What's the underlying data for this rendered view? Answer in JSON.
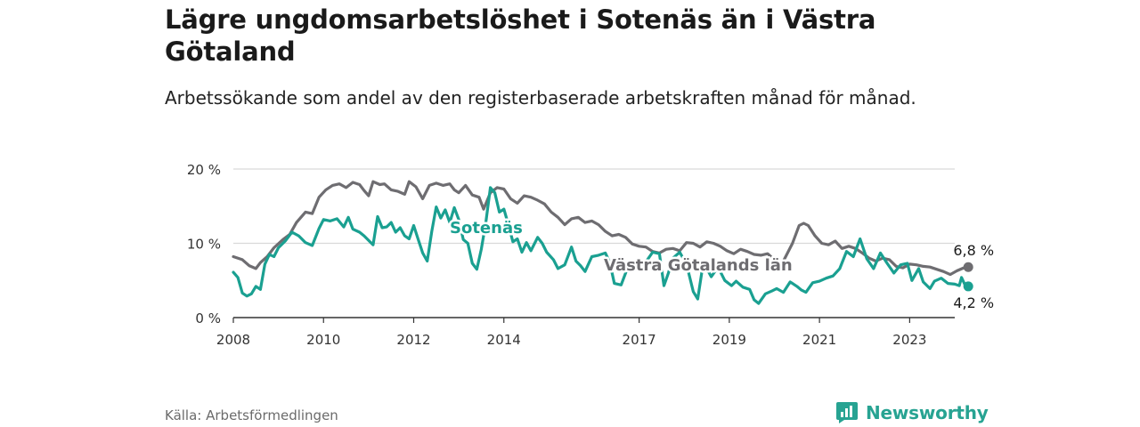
{
  "title": "Lägre ungdomsarbetslöshet i Sotenäs än i Västra Götaland",
  "subtitle": "Arbetssökande som andel av den registerbaserade arbetskraften månad för månad.",
  "source": "Källa: Arbetsförmedlingen",
  "brand": "Newsworthy",
  "colors": {
    "sotenas": "#1aa091",
    "vg": "#6e6d71",
    "grid": "#d9d9d9",
    "axis": "#333333",
    "brand": "#27a392"
  },
  "chart_data": {
    "type": "line",
    "title": "Lägre ungdomsarbetslöshet i Sotenäs än i Västra Götaland",
    "xlabel": "",
    "ylabel": "",
    "xlim": [
      2008,
      2024
    ],
    "ylim": [
      0,
      20
    ],
    "yticks": [
      0,
      10,
      20
    ],
    "ytick_labels": [
      "0 %",
      "10 %",
      "20 %"
    ],
    "xticks": [
      2008,
      2010,
      2012,
      2014,
      2017,
      2019,
      2021,
      2023
    ],
    "xtick_labels": [
      "2008",
      "2010",
      "2012",
      "2014",
      "2017",
      "2019",
      "2021",
      "2023"
    ],
    "grid": true,
    "series": [
      {
        "name": "Västra Götalands län",
        "label": "Västra Götalands län",
        "end_label": "6,8 %",
        "points": [
          [
            2008.0,
            8.2
          ],
          [
            2008.2,
            7.8
          ],
          [
            2008.35,
            7.0
          ],
          [
            2008.5,
            6.6
          ],
          [
            2008.6,
            7.4
          ],
          [
            2008.75,
            8.2
          ],
          [
            2008.9,
            9.4
          ],
          [
            2009.1,
            10.5
          ],
          [
            2009.25,
            11.2
          ],
          [
            2009.4,
            12.8
          ],
          [
            2009.6,
            14.2
          ],
          [
            2009.75,
            14.0
          ],
          [
            2009.9,
            16.2
          ],
          [
            2010.05,
            17.2
          ],
          [
            2010.2,
            17.8
          ],
          [
            2010.35,
            18.0
          ],
          [
            2010.5,
            17.5
          ],
          [
            2010.65,
            18.2
          ],
          [
            2010.8,
            17.9
          ],
          [
            2010.9,
            17.1
          ],
          [
            2011.0,
            16.4
          ],
          [
            2011.1,
            18.3
          ],
          [
            2011.25,
            17.9
          ],
          [
            2011.35,
            18.0
          ],
          [
            2011.5,
            17.2
          ],
          [
            2011.65,
            17.0
          ],
          [
            2011.8,
            16.6
          ],
          [
            2011.9,
            18.3
          ],
          [
            2012.05,
            17.6
          ],
          [
            2012.2,
            16.0
          ],
          [
            2012.35,
            17.8
          ],
          [
            2012.5,
            18.1
          ],
          [
            2012.65,
            17.8
          ],
          [
            2012.8,
            18.0
          ],
          [
            2012.9,
            17.2
          ],
          [
            2013.0,
            16.8
          ],
          [
            2013.15,
            17.8
          ],
          [
            2013.3,
            16.5
          ],
          [
            2013.45,
            16.2
          ],
          [
            2013.55,
            14.6
          ],
          [
            2013.7,
            16.8
          ],
          [
            2013.85,
            17.5
          ],
          [
            2014.0,
            17.3
          ],
          [
            2014.15,
            16.0
          ],
          [
            2014.3,
            15.4
          ],
          [
            2014.45,
            16.4
          ],
          [
            2014.6,
            16.2
          ],
          [
            2014.75,
            15.8
          ],
          [
            2014.9,
            15.3
          ],
          [
            2015.05,
            14.2
          ],
          [
            2015.2,
            13.5
          ],
          [
            2015.35,
            12.5
          ],
          [
            2015.5,
            13.3
          ],
          [
            2015.65,
            13.5
          ],
          [
            2015.8,
            12.8
          ],
          [
            2015.95,
            13.0
          ],
          [
            2016.1,
            12.5
          ],
          [
            2016.25,
            11.6
          ],
          [
            2016.4,
            11.0
          ],
          [
            2016.55,
            11.2
          ],
          [
            2016.7,
            10.8
          ],
          [
            2016.85,
            9.9
          ],
          [
            2017.0,
            9.6
          ],
          [
            2017.15,
            9.5
          ],
          [
            2017.3,
            8.9
          ],
          [
            2017.45,
            8.7
          ],
          [
            2017.6,
            9.2
          ],
          [
            2017.75,
            9.3
          ],
          [
            2017.9,
            9.0
          ],
          [
            2018.05,
            10.1
          ],
          [
            2018.2,
            10.0
          ],
          [
            2018.35,
            9.5
          ],
          [
            2018.5,
            10.2
          ],
          [
            2018.65,
            10.0
          ],
          [
            2018.8,
            9.6
          ],
          [
            2018.95,
            9.0
          ],
          [
            2019.1,
            8.6
          ],
          [
            2019.25,
            9.2
          ],
          [
            2019.4,
            8.9
          ],
          [
            2019.55,
            8.5
          ],
          [
            2019.7,
            8.4
          ],
          [
            2019.85,
            8.6
          ],
          [
            2020.0,
            7.8
          ],
          [
            2020.1,
            7.2
          ],
          [
            2020.2,
            7.6
          ],
          [
            2020.4,
            10.0
          ],
          [
            2020.55,
            12.4
          ],
          [
            2020.65,
            12.7
          ],
          [
            2020.75,
            12.4
          ],
          [
            2020.9,
            11.0
          ],
          [
            2021.05,
            10.0
          ],
          [
            2021.2,
            9.8
          ],
          [
            2021.35,
            10.3
          ],
          [
            2021.5,
            9.3
          ],
          [
            2021.65,
            9.6
          ],
          [
            2021.8,
            9.3
          ],
          [
            2021.95,
            8.7
          ],
          [
            2022.1,
            8.0
          ],
          [
            2022.25,
            7.6
          ],
          [
            2022.4,
            8.0
          ],
          [
            2022.55,
            7.8
          ],
          [
            2022.7,
            6.9
          ],
          [
            2022.85,
            6.7
          ],
          [
            2023.0,
            7.2
          ],
          [
            2023.15,
            7.1
          ],
          [
            2023.3,
            6.9
          ],
          [
            2023.45,
            6.8
          ],
          [
            2023.6,
            6.5
          ],
          [
            2023.75,
            6.2
          ],
          [
            2023.9,
            5.8
          ],
          [
            2024.05,
            6.3
          ],
          [
            2024.2,
            6.7
          ],
          [
            2024.3,
            6.8
          ]
        ]
      },
      {
        "name": "Sotenäs",
        "label": "Sotenäs",
        "end_label": "4,2 %",
        "points": [
          [
            2008.0,
            6.1
          ],
          [
            2008.1,
            5.4
          ],
          [
            2008.2,
            3.3
          ],
          [
            2008.3,
            2.9
          ],
          [
            2008.4,
            3.2
          ],
          [
            2008.5,
            4.2
          ],
          [
            2008.6,
            3.8
          ],
          [
            2008.7,
            7.2
          ],
          [
            2008.8,
            8.5
          ],
          [
            2008.9,
            8.2
          ],
          [
            2009.0,
            9.4
          ],
          [
            2009.15,
            10.3
          ],
          [
            2009.3,
            11.5
          ],
          [
            2009.45,
            11.0
          ],
          [
            2009.6,
            10.1
          ],
          [
            2009.75,
            9.7
          ],
          [
            2009.9,
            12.0
          ],
          [
            2010.0,
            13.2
          ],
          [
            2010.15,
            13.0
          ],
          [
            2010.3,
            13.3
          ],
          [
            2010.45,
            12.2
          ],
          [
            2010.55,
            13.5
          ],
          [
            2010.65,
            11.9
          ],
          [
            2010.8,
            11.5
          ],
          [
            2010.9,
            11.0
          ],
          [
            2011.0,
            10.4
          ],
          [
            2011.1,
            9.8
          ],
          [
            2011.2,
            13.6
          ],
          [
            2011.3,
            12.1
          ],
          [
            2011.4,
            12.2
          ],
          [
            2011.5,
            12.8
          ],
          [
            2011.6,
            11.5
          ],
          [
            2011.7,
            12.1
          ],
          [
            2011.8,
            11.0
          ],
          [
            2011.9,
            10.6
          ],
          [
            2012.0,
            12.4
          ],
          [
            2012.1,
            10.5
          ],
          [
            2012.2,
            8.7
          ],
          [
            2012.3,
            7.6
          ],
          [
            2012.4,
            11.6
          ],
          [
            2012.5,
            14.9
          ],
          [
            2012.6,
            13.4
          ],
          [
            2012.7,
            14.5
          ],
          [
            2012.8,
            12.8
          ],
          [
            2012.9,
            14.8
          ],
          [
            2013.0,
            13.2
          ],
          [
            2013.1,
            10.5
          ],
          [
            2013.2,
            10.0
          ],
          [
            2013.3,
            7.3
          ],
          [
            2013.4,
            6.5
          ],
          [
            2013.5,
            9.2
          ],
          [
            2013.6,
            12.8
          ],
          [
            2013.7,
            17.5
          ],
          [
            2013.8,
            16.8
          ],
          [
            2013.9,
            14.2
          ],
          [
            2014.0,
            14.6
          ],
          [
            2014.1,
            12.5
          ],
          [
            2014.2,
            10.2
          ],
          [
            2014.3,
            10.6
          ],
          [
            2014.4,
            8.8
          ],
          [
            2014.5,
            10.1
          ],
          [
            2014.6,
            9.0
          ],
          [
            2014.75,
            10.8
          ],
          [
            2014.85,
            10.0
          ],
          [
            2014.95,
            8.8
          ],
          [
            2015.1,
            7.8
          ],
          [
            2015.2,
            6.6
          ],
          [
            2015.35,
            7.1
          ],
          [
            2015.5,
            9.5
          ],
          [
            2015.6,
            7.6
          ],
          [
            2015.7,
            7.0
          ],
          [
            2015.8,
            6.2
          ],
          [
            2015.95,
            8.2
          ],
          [
            2016.1,
            8.4
          ],
          [
            2016.25,
            8.7
          ],
          [
            2016.35,
            7.4
          ],
          [
            2016.45,
            4.6
          ],
          [
            2016.6,
            4.4
          ],
          [
            2016.75,
            6.8
          ],
          [
            2016.9,
            6.5
          ],
          [
            2017.0,
            6.9
          ],
          [
            2017.15,
            7.5
          ],
          [
            2017.3,
            8.8
          ],
          [
            2017.45,
            8.6
          ],
          [
            2017.55,
            4.3
          ],
          [
            2017.65,
            6.0
          ],
          [
            2017.75,
            8.0
          ],
          [
            2017.9,
            8.8
          ],
          [
            2018.05,
            7.2
          ],
          [
            2018.2,
            3.5
          ],
          [
            2018.3,
            2.5
          ],
          [
            2018.4,
            6.5
          ],
          [
            2018.5,
            6.6
          ],
          [
            2018.6,
            5.5
          ],
          [
            2018.75,
            6.8
          ],
          [
            2018.9,
            5.0
          ],
          [
            2019.05,
            4.3
          ],
          [
            2019.15,
            4.9
          ],
          [
            2019.3,
            4.1
          ],
          [
            2019.45,
            3.8
          ],
          [
            2019.55,
            2.4
          ],
          [
            2019.65,
            1.9
          ],
          [
            2019.8,
            3.2
          ],
          [
            2019.95,
            3.6
          ],
          [
            2020.05,
            3.9
          ],
          [
            2020.2,
            3.4
          ],
          [
            2020.35,
            4.8
          ],
          [
            2020.5,
            4.2
          ],
          [
            2020.6,
            3.7
          ],
          [
            2020.7,
            3.4
          ],
          [
            2020.85,
            4.7
          ],
          [
            2021.0,
            4.9
          ],
          [
            2021.15,
            5.3
          ],
          [
            2021.3,
            5.6
          ],
          [
            2021.45,
            6.6
          ],
          [
            2021.6,
            8.9
          ],
          [
            2021.75,
            8.2
          ],
          [
            2021.9,
            10.6
          ],
          [
            2022.05,
            7.9
          ],
          [
            2022.2,
            6.6
          ],
          [
            2022.35,
            8.7
          ],
          [
            2022.5,
            7.3
          ],
          [
            2022.65,
            6.0
          ],
          [
            2022.8,
            7.1
          ],
          [
            2022.95,
            7.3
          ],
          [
            2023.05,
            5.0
          ],
          [
            2023.2,
            6.6
          ],
          [
            2023.3,
            4.8
          ],
          [
            2023.45,
            3.9
          ],
          [
            2023.55,
            4.9
          ],
          [
            2023.7,
            5.3
          ],
          [
            2023.85,
            4.6
          ],
          [
            2024.0,
            4.5
          ],
          [
            2024.1,
            4.3
          ],
          [
            2024.15,
            5.4
          ],
          [
            2024.25,
            4.1
          ],
          [
            2024.3,
            4.2
          ]
        ]
      }
    ]
  }
}
